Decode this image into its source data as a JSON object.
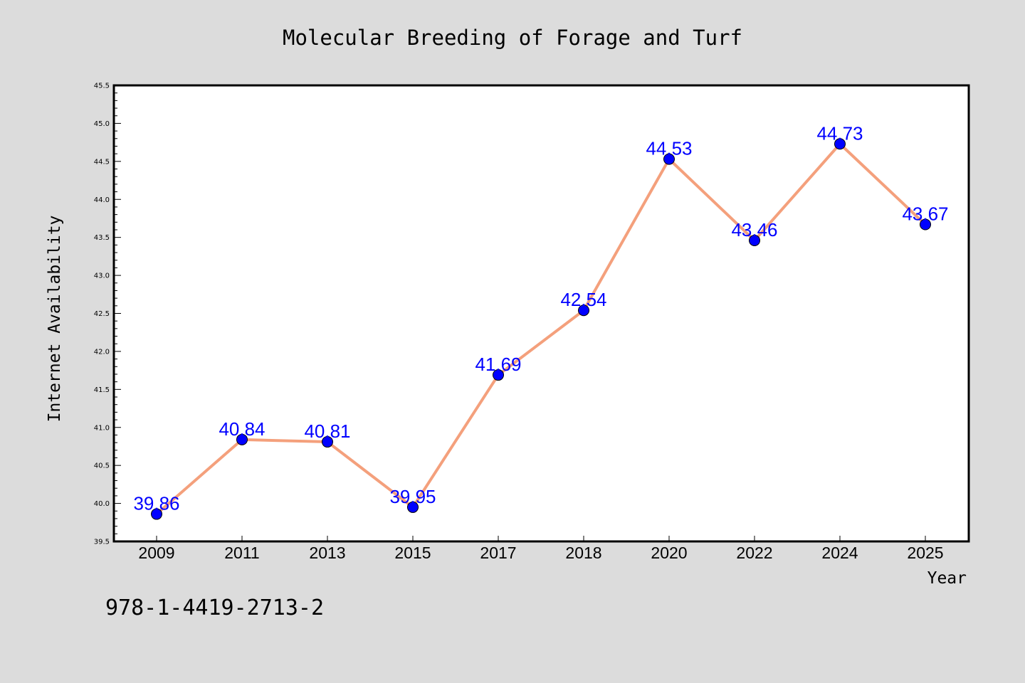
{
  "footer_text": "978-1-4419-2713-2",
  "colors": {
    "background": "#dcdcdc",
    "plot_background": "#ffffff",
    "line": "#f4a07c",
    "marker": "#0000ff",
    "data_label": "#0000ff"
  },
  "chart_data": {
    "type": "line",
    "title": "Molecular Breeding of Forage and Turf",
    "xlabel": "Year",
    "ylabel": "Internet Availability",
    "categories": [
      "2009",
      "2011",
      "2013",
      "2015",
      "2017",
      "2018",
      "2020",
      "2022",
      "2024",
      "2025"
    ],
    "series": [
      {
        "values": [
          39.86,
          40.84,
          40.81,
          39.95,
          41.69,
          42.54,
          44.53,
          43.46,
          44.73,
          43.67
        ],
        "data_labels": [
          "39.86",
          "40.84",
          "40.81",
          "39.95",
          "41.69",
          "42.54",
          "44.53",
          "43.46",
          "44.73",
          "43.67"
        ]
      }
    ],
    "ylim": [
      39.5,
      45.5
    ],
    "yticks": [
      "39.5",
      "40.0",
      "40.5",
      "41.0",
      "41.5",
      "42.0",
      "42.5",
      "43.0",
      "43.5",
      "44.0",
      "44.5",
      "45.0",
      "45.5"
    ],
    "grid": false,
    "legend": false,
    "markers": "circle"
  }
}
